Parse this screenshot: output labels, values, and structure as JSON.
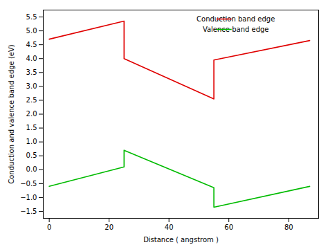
{
  "chart_data": {
    "type": "line",
    "xlabel": "Distance ( angstrom )",
    "ylabel": "Conduction and valence band edge (eV)",
    "x": [
      0,
      25,
      25,
      55,
      55,
      87
    ],
    "series": [
      {
        "name": "Conduction band edge",
        "color": "#e00000",
        "values": [
          4.7,
          5.35,
          4.0,
          2.55,
          3.95,
          4.65
        ]
      },
      {
        "name": "Valence band edge",
        "color": "#00bb00",
        "values": [
          -0.6,
          0.1,
          0.7,
          -0.65,
          -1.35,
          -0.6
        ]
      }
    ],
    "xlim": [
      -2,
      90
    ],
    "ylim": [
      -1.75,
      5.75
    ],
    "xticks": [
      0,
      20,
      40,
      60,
      80
    ],
    "yticks": [
      {
        "value": -1.5,
        "label": "−1.5"
      },
      {
        "value": -1.0,
        "label": "−1.0"
      },
      {
        "value": -0.5,
        "label": "−0.5"
      },
      {
        "value": 0.0,
        "label": "0.0"
      },
      0.5,
      {
        "value": 1.0,
        "label": "1.0"
      },
      1.5,
      {
        "value": 2.0,
        "label": "2.0"
      },
      2.5,
      {
        "value": 3.0,
        "label": "3.0"
      },
      3.5,
      {
        "value": 4.0,
        "label": "4.0"
      },
      4.5,
      {
        "value": 5.0,
        "label": "5.0"
      },
      5.5
    ],
    "grid": false,
    "legend": "upper right"
  }
}
